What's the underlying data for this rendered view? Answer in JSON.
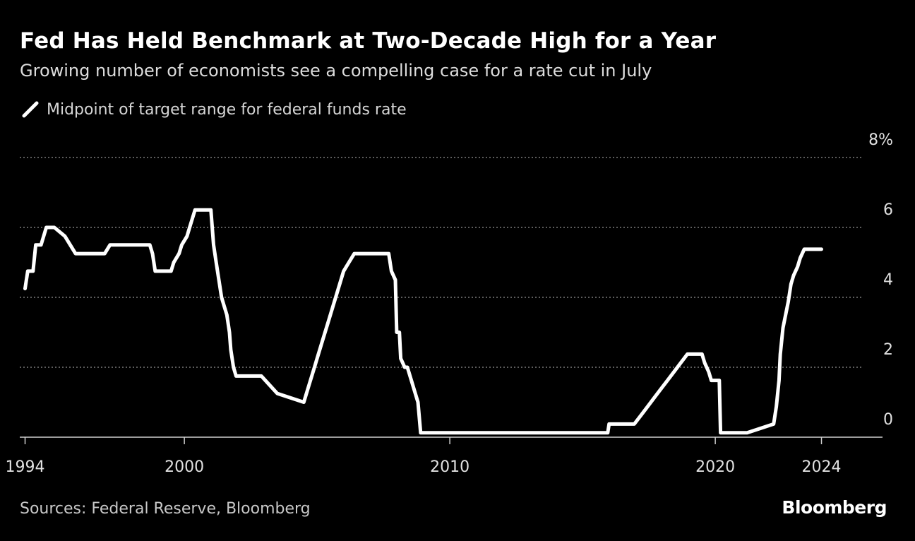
{
  "header": {
    "title": "Fed Has Held Benchmark at Two-Decade High for a Year",
    "subtitle": "Growing number of economists see a compelling case for a rate cut in July"
  },
  "footer": {
    "source": "Sources: Federal Reserve, Bloomberg",
    "brand": "Bloomberg"
  },
  "colors": {
    "background": "#000000",
    "line": "#ffffff",
    "grid": "#7a7a7a",
    "text": "#ffffff"
  },
  "chart_data": {
    "type": "line",
    "title": "Fed Has Held Benchmark at Two-Decade High for a Year",
    "subtitle": "Growing number of economists see a compelling case for a rate cut in July",
    "legend": {
      "label": "Midpoint of target range for federal funds rate",
      "placement": "top-left"
    },
    "xlim": [
      1993.8,
      2026.3
    ],
    "ylim": [
      -0.6,
      8
    ],
    "y_ticks": [
      8,
      6,
      4,
      2,
      0
    ],
    "y_tick_labels": [
      "8%",
      "6",
      "4",
      "2",
      "0"
    ],
    "y_axis_side": "right",
    "grid": "dotted horizontal",
    "x_ticks": [
      1994,
      2000,
      2010,
      2020,
      2024
    ],
    "x_tick_labels": [
      "1994",
      "2000",
      "2010",
      "2020",
      "2024"
    ],
    "series": [
      {
        "name": "Midpoint of target range for federal funds rate",
        "x": [
          1994.0,
          1994.1,
          1994.3,
          1994.4,
          1994.6,
          1994.8,
          1995.1,
          1995.5,
          1995.9,
          1996.0,
          1997.0,
          1997.2,
          1998.7,
          1998.8,
          1998.9,
          1999.5,
          1999.6,
          1999.8,
          1999.9,
          2000.1,
          2000.2,
          2000.4,
          2001.0,
          2001.1,
          2001.2,
          2001.3,
          2001.4,
          2001.5,
          2001.6,
          2001.7,
          2001.75,
          2001.85,
          2001.95,
          2002.9,
          2003.5,
          2004.5,
          2004.7,
          2004.9,
          2005.0,
          2005.2,
          2005.4,
          2005.6,
          2005.8,
          2006.0,
          2006.2,
          2006.4,
          2006.5,
          2007.7,
          2007.8,
          2007.95,
          2008.0,
          2008.1,
          2008.15,
          2008.3,
          2008.4,
          2008.8,
          2008.9,
          2009.0,
          2015.95,
          2016.0,
          2016.95,
          2017.2,
          2017.45,
          2017.7,
          2017.95,
          2018.2,
          2018.45,
          2018.7,
          2018.95,
          2019.5,
          2019.6,
          2019.75,
          2019.85,
          2020.15,
          2020.2,
          2021.2,
          2022.2,
          2022.3,
          2022.4,
          2022.45,
          2022.55,
          2022.75,
          2022.85,
          2022.95,
          2023.1,
          2023.2,
          2023.35,
          2023.55,
          2024.0
        ],
        "values": [
          4.25,
          4.75,
          4.75,
          5.5,
          5.5,
          6.0,
          6.0,
          5.75,
          5.25,
          5.25,
          5.25,
          5.5,
          5.5,
          5.25,
          4.75,
          4.75,
          5.0,
          5.25,
          5.5,
          5.75,
          6.0,
          6.5,
          6.5,
          5.5,
          5.0,
          4.5,
          4.0,
          3.75,
          3.5,
          3.0,
          2.5,
          2.0,
          1.75,
          1.75,
          1.25,
          1.0,
          1.5,
          2.0,
          2.25,
          2.75,
          3.25,
          3.75,
          4.25,
          4.75,
          5.0,
          5.25,
          5.25,
          5.25,
          4.75,
          4.5,
          3.0,
          3.0,
          2.25,
          2.0,
          2.0,
          1.0,
          0.125,
          0.125,
          0.125,
          0.375,
          0.375,
          0.625,
          0.875,
          1.125,
          1.375,
          1.625,
          1.875,
          2.125,
          2.375,
          2.375,
          2.125,
          1.875,
          1.625,
          1.625,
          0.125,
          0.125,
          0.375,
          0.875,
          1.625,
          2.375,
          3.125,
          3.875,
          4.375,
          4.625,
          4.875,
          5.125,
          5.375,
          5.375,
          5.375
        ]
      }
    ]
  }
}
